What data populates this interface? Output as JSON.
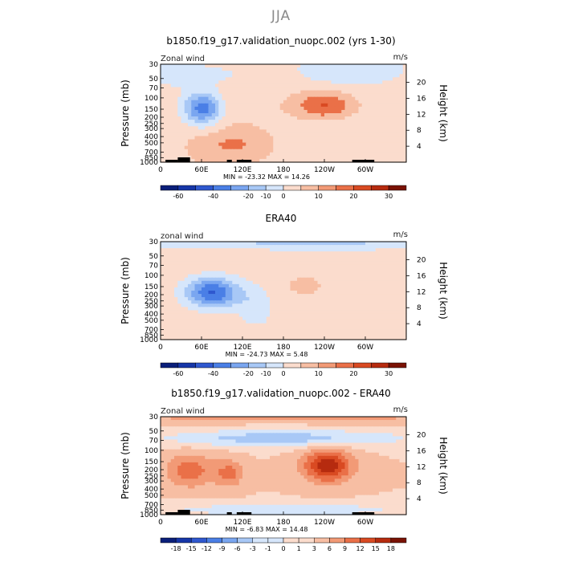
{
  "figure": {
    "suptitle": "JJA"
  },
  "colors": {
    "palette": [
      "#0a1f7a",
      "#1636a8",
      "#2f58cf",
      "#4a7fe6",
      "#7aa6f0",
      "#a8c8f6",
      "#d6e6fb",
      "#fbdccd",
      "#f7bea3",
      "#f29a76",
      "#ea7048",
      "#d94a22",
      "#b62b0f",
      "#7a1204"
    ]
  },
  "chart_data": [
    {
      "type": "heatmap",
      "title": "b1850.f19_g17.validation_nuopc.002 (yrs 1-30)",
      "field_label": "Zonal wind",
      "units": "m/s",
      "ylabel": "Pressure (mb)",
      "ylabel_right": "Height (km)",
      "x_ticks": [
        "0",
        "60E",
        "120E",
        "180",
        "120W",
        "60W"
      ],
      "y_ticks": [
        "30",
        "50",
        "70",
        "100",
        "150",
        "200",
        "250",
        "300",
        "400",
        "500",
        "700",
        "850",
        "1000"
      ],
      "y_ticks_right": [
        "20",
        "16",
        "12",
        "8",
        "4"
      ],
      "stats": "MIN = -23.32   MAX =  14.26",
      "levels": [
        "-60",
        "-40",
        "-20",
        "-10",
        "0",
        "10",
        "20",
        "30"
      ],
      "min": -23.32,
      "max": 14.26,
      "features": [
        {
          "lon": 60,
          "p": 150,
          "value": -23.32
        },
        {
          "lon": 240,
          "p": 150,
          "value": 14.26
        },
        {
          "lon": 140,
          "p": 600,
          "value": 5
        }
      ]
    },
    {
      "type": "heatmap",
      "title": "ERA40",
      "field_label": "zonal wind",
      "units": "m/s",
      "ylabel": "Pressure (mb)",
      "ylabel_right": "Height (km)",
      "x_ticks": [
        "0",
        "60E",
        "120E",
        "180",
        "120W",
        "60W"
      ],
      "y_ticks": [
        "30",
        "50",
        "70",
        "100",
        "150",
        "200",
        "250",
        "300",
        "400",
        "500",
        "700",
        "850",
        "1000"
      ],
      "y_ticks_right": [
        "20",
        "16",
        "12",
        "8",
        "4"
      ],
      "stats": "MIN = -24.73   MAX =   5.48",
      "levels": [
        "-60",
        "-40",
        "-20",
        "-10",
        "0",
        "10",
        "20",
        "30"
      ],
      "min": -24.73,
      "max": 5.48,
      "features": [
        {
          "lon": 75,
          "p": 180,
          "value": -24.73
        },
        {
          "lon": 230,
          "p": 130,
          "value": 5.48
        }
      ]
    },
    {
      "type": "heatmap",
      "title": "b1850.f19_g17.validation_nuopc.002 - ERA40",
      "field_label": "Zonal wind",
      "units": "m/s",
      "ylabel": "Pressure (mb)",
      "ylabel_right": "Height (km)",
      "x_ticks": [
        "0",
        "60E",
        "120E",
        "180",
        "120W",
        "60W"
      ],
      "y_ticks": [
        "30",
        "50",
        "70",
        "100",
        "150",
        "200",
        "250",
        "300",
        "400",
        "500",
        "700",
        "850",
        "1000"
      ],
      "y_ticks_right": [
        "20",
        "16",
        "12",
        "8",
        "4"
      ],
      "stats": "MIN =  -6.83   MAX =  14.48",
      "levels": [
        "-18",
        "-15",
        "-12",
        "-9",
        "-6",
        "-3",
        "-1",
        "0",
        "1",
        "3",
        "6",
        "9",
        "12",
        "15",
        "18"
      ],
      "min": -6.83,
      "max": 14.48,
      "features": [
        {
          "lon": 245,
          "p": 170,
          "value": 14.48
        },
        {
          "lon": 110,
          "p": 60,
          "value": -6.83
        }
      ]
    }
  ]
}
